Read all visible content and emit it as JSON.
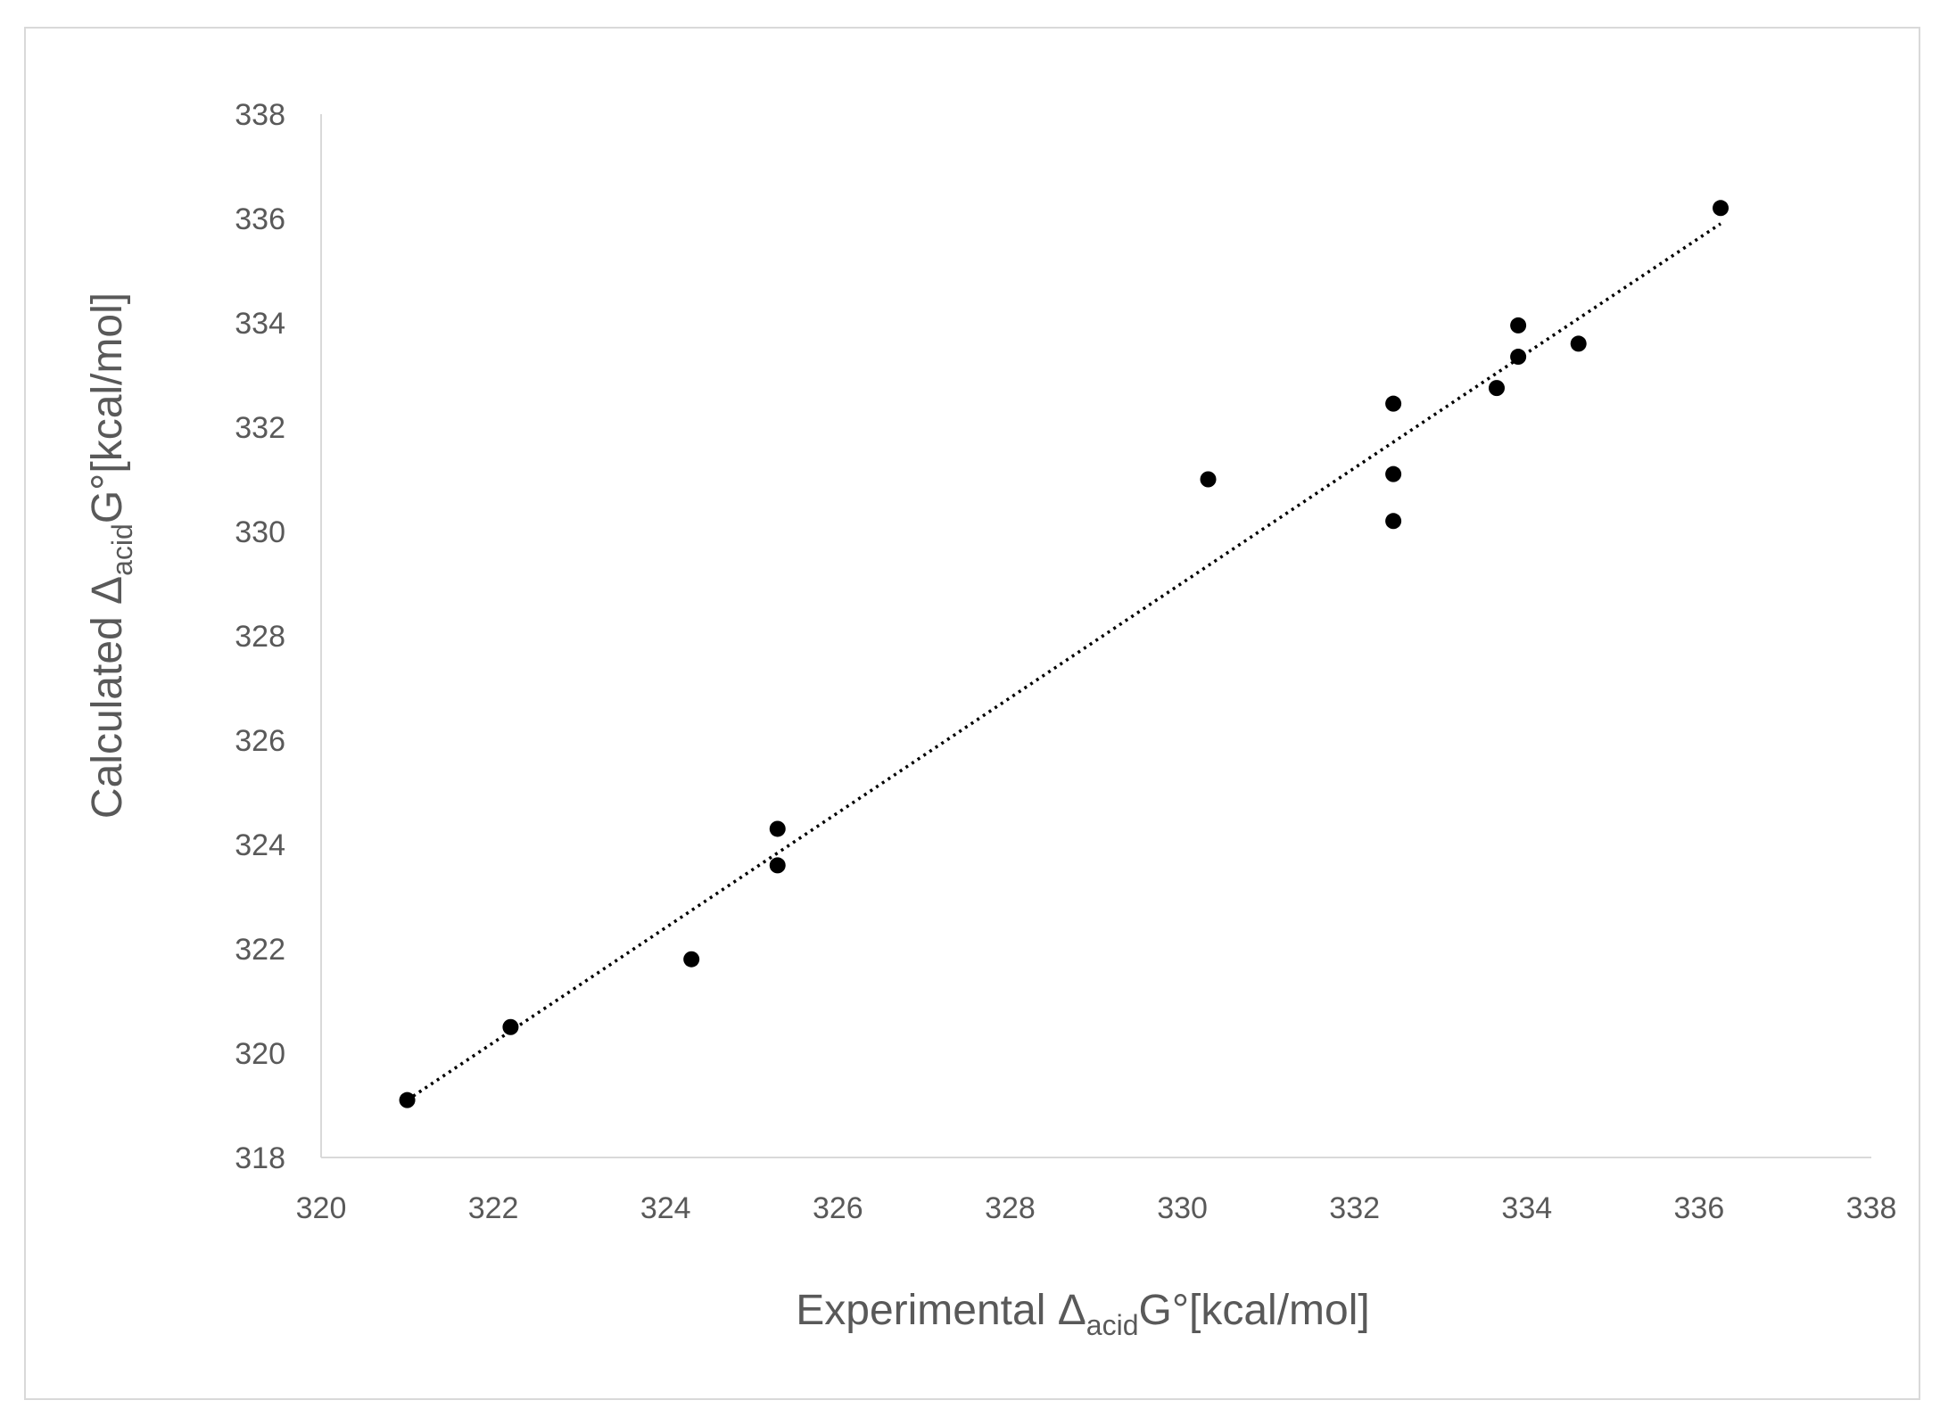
{
  "chart_data": {
    "type": "scatter",
    "title": "",
    "xlabel": {
      "pre": "Experimental Δ",
      "sub": "acid",
      "post": "G°[kcal/mol]"
    },
    "ylabel": {
      "pre": "Calculated  Δ",
      "sub": "acid",
      "post": "G°[kcal/mol]"
    },
    "xlim": [
      320,
      338
    ],
    "ylim": [
      318,
      338
    ],
    "xticks": [
      320,
      322,
      324,
      326,
      328,
      330,
      332,
      334,
      336,
      338
    ],
    "yticks": [
      318,
      320,
      322,
      324,
      326,
      328,
      330,
      332,
      334,
      336,
      338
    ],
    "grid": false,
    "legend": "none",
    "series": [
      {
        "marker_color": "#000000",
        "points": [
          {
            "x": 321.0,
            "y": 319.1
          },
          {
            "x": 322.2,
            "y": 320.5
          },
          {
            "x": 324.3,
            "y": 321.8
          },
          {
            "x": 325.3,
            "y": 323.6
          },
          {
            "x": 325.3,
            "y": 324.3
          },
          {
            "x": 330.3,
            "y": 331.0
          },
          {
            "x": 332.45,
            "y": 330.2
          },
          {
            "x": 332.45,
            "y": 331.1
          },
          {
            "x": 332.45,
            "y": 332.45
          },
          {
            "x": 333.65,
            "y": 332.75
          },
          {
            "x": 333.9,
            "y": 333.35
          },
          {
            "x": 333.9,
            "y": 333.95
          },
          {
            "x": 334.6,
            "y": 333.6
          },
          {
            "x": 336.25,
            "y": 336.2
          }
        ]
      }
    ],
    "trendline": {
      "style": "dotted",
      "color": "#000000",
      "x_range": [
        321.0,
        336.25
      ],
      "y_range": [
        319.1,
        335.9
      ]
    }
  }
}
